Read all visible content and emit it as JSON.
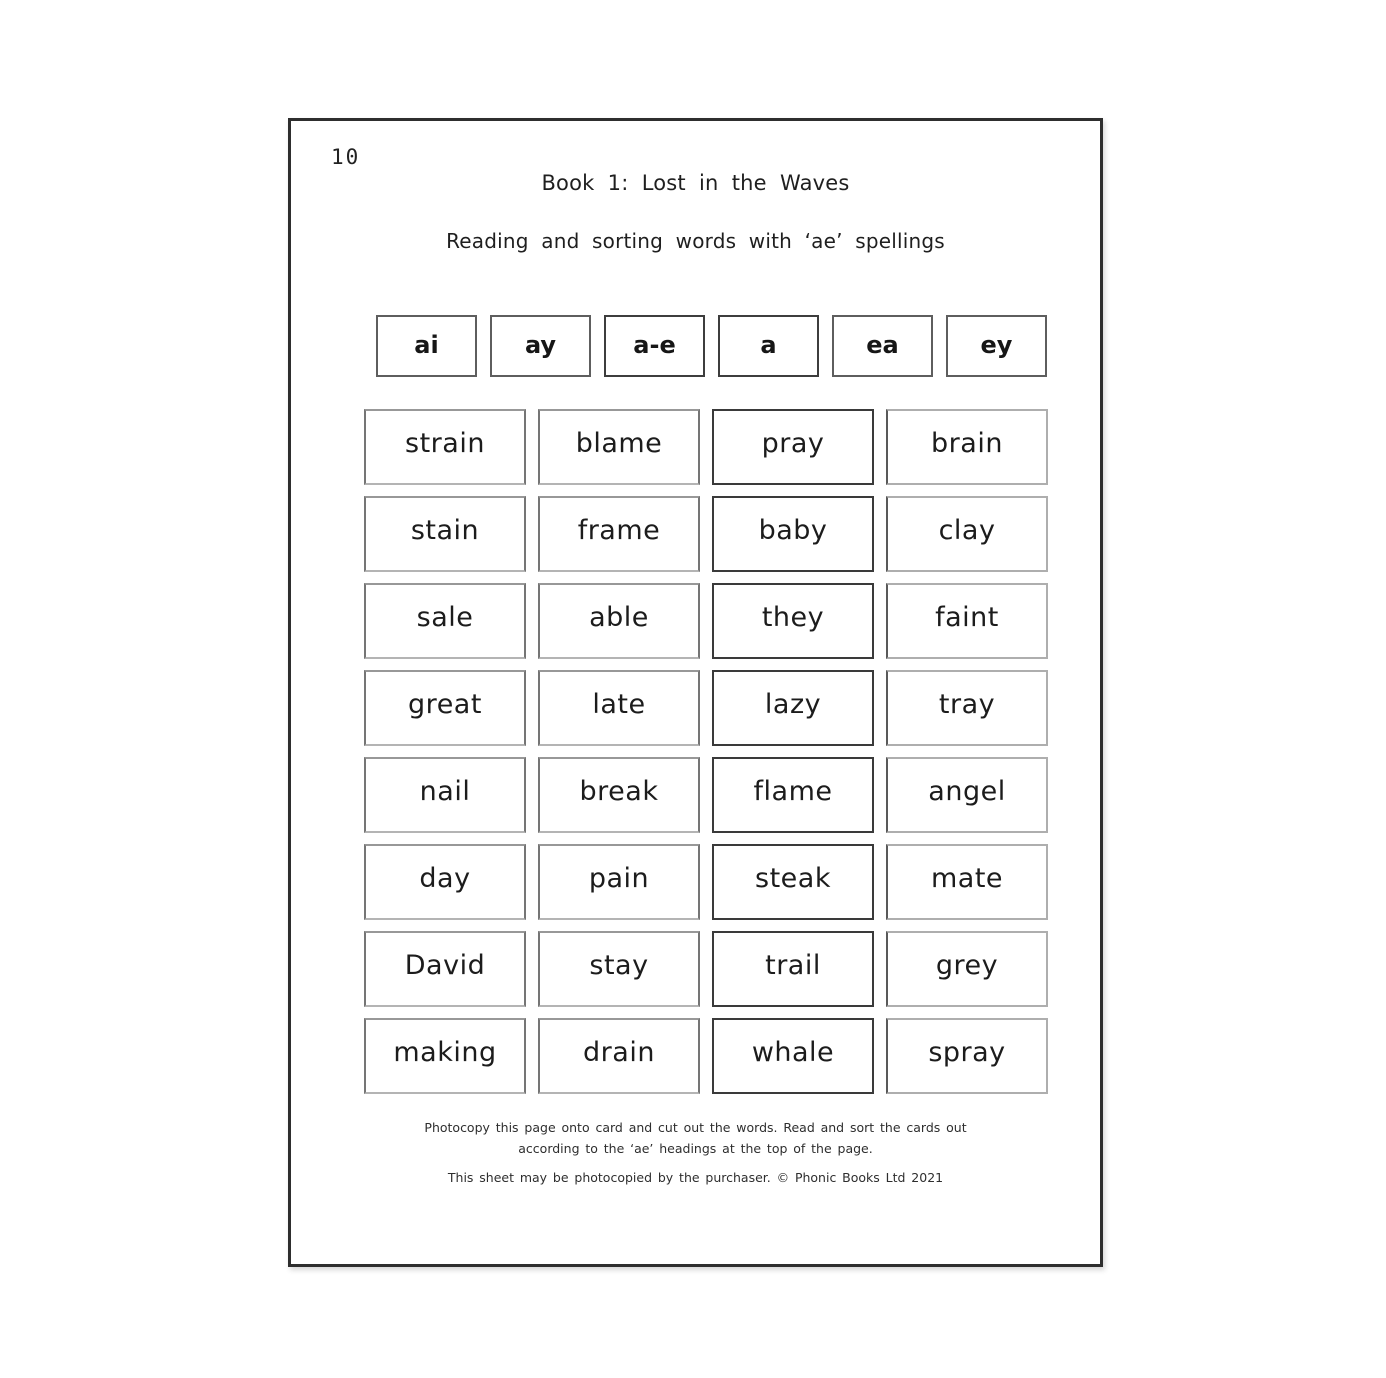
{
  "page": {
    "number": "10",
    "title": "Book 1: Lost in the Waves",
    "subtitle": "Reading and sorting words with ‘ae’ spellings"
  },
  "spellings": [
    "ai",
    "ay",
    "a-e",
    "a",
    "ea",
    "ey"
  ],
  "words": [
    [
      "strain",
      "blame",
      "pray",
      "brain"
    ],
    [
      "stain",
      "frame",
      "baby",
      "clay"
    ],
    [
      "sale",
      "able",
      "they",
      "faint"
    ],
    [
      "great",
      "late",
      "lazy",
      "tray"
    ],
    [
      "nail",
      "break",
      "flame",
      "angel"
    ],
    [
      "day",
      "pain",
      "steak",
      "mate"
    ],
    [
      "David",
      "stay",
      "trail",
      "grey"
    ],
    [
      "making",
      "drain",
      "whale",
      "spray"
    ]
  ],
  "footer": {
    "instruction_line1": "Photocopy this page onto card and cut out the words.  Read and sort the cards out",
    "instruction_line2": "according to the ‘ae’ headings at the top of the page.",
    "copyright": "This sheet may be photocopied by the purchaser. © Phonic Books Ltd 2021"
  },
  "colors": {
    "ink": "#1f1f1f",
    "sheet_border": "#2e2e2e",
    "card_border": "#757575"
  }
}
